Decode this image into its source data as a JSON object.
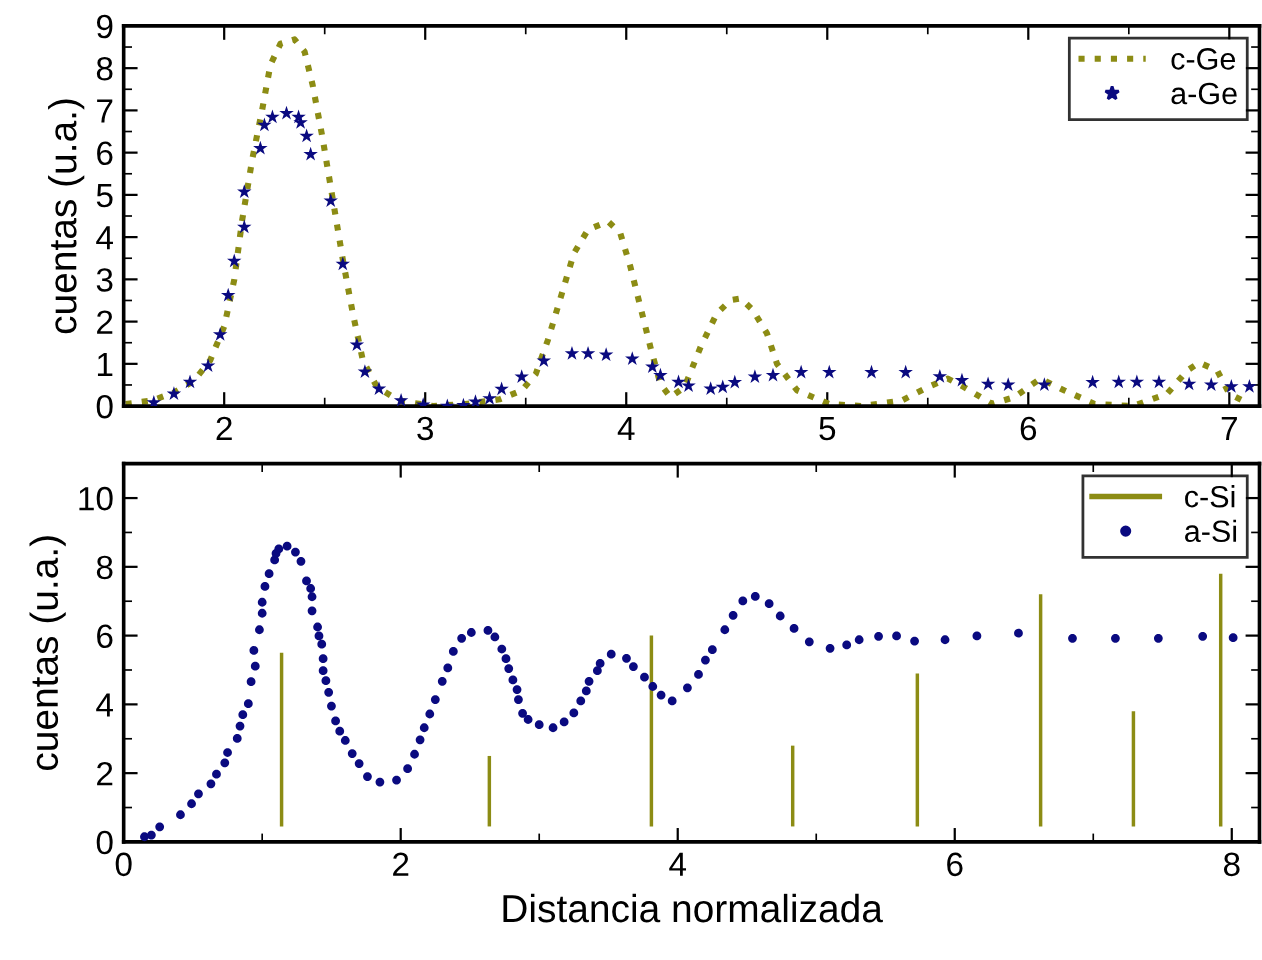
{
  "chart_data": [
    {
      "type": "line",
      "ylabel": "cuentas (u.a.)",
      "xlim": [
        1.5,
        7.15
      ],
      "ylim": [
        0,
        9
      ],
      "xticks": [
        2,
        3,
        4,
        5,
        6,
        7
      ],
      "yticks": [
        0,
        1,
        2,
        3,
        4,
        5,
        6,
        7,
        8,
        9
      ],
      "legend": "top right",
      "grid": false,
      "series": [
        {
          "name": "c-Ge",
          "line_style": "dotted",
          "color": "#8c8c14",
          "x": [
            1.51,
            1.64,
            1.75,
            1.85,
            1.93,
            2.0,
            2.05,
            2.09,
            2.14,
            2.19,
            2.23,
            2.28,
            2.35,
            2.4,
            2.44,
            2.49,
            2.54,
            2.59,
            2.64,
            2.69,
            2.76,
            2.87,
            3.04,
            3.2,
            3.37,
            3.48,
            3.55,
            3.61,
            3.68,
            3.74,
            3.81,
            3.91,
            3.97,
            4.02,
            4.07,
            4.12,
            4.17,
            4.22,
            4.29,
            4.37,
            4.45,
            4.52,
            4.57,
            4.63,
            4.7,
            4.75,
            4.85,
            5.01,
            5.17,
            5.37,
            5.5,
            5.6,
            5.68,
            5.82,
            5.93,
            6.06,
            6.18,
            6.33,
            6.52,
            6.69,
            6.79,
            6.85,
            6.94,
            7.0,
            7.1
          ],
          "values": [
            0.05,
            0.13,
            0.32,
            0.6,
            1.08,
            1.88,
            2.99,
            4.42,
            5.85,
            7.04,
            8.08,
            8.58,
            8.68,
            8.39,
            7.6,
            6.33,
            4.9,
            3.47,
            2.19,
            1.08,
            0.45,
            0.13,
            0.0,
            0.05,
            0.16,
            0.37,
            0.76,
            1.56,
            2.67,
            3.62,
            4.18,
            4.37,
            4.1,
            3.31,
            2.36,
            1.4,
            0.52,
            0.21,
            0.45,
            1.4,
            2.19,
            2.51,
            2.55,
            2.27,
            1.72,
            1.0,
            0.37,
            0.05,
            0.0,
            0.13,
            0.45,
            0.65,
            0.45,
            0.05,
            0.21,
            0.65,
            0.37,
            0.05,
            0.0,
            0.29,
            0.84,
            1.03,
            0.84,
            0.29,
            0.05
          ]
        },
        {
          "name": "a-Ge",
          "type": "scatter",
          "marker": "star",
          "color": "#0a0a80",
          "x": [
            1.65,
            1.75,
            1.83,
            1.92,
            1.98,
            2.02,
            2.05,
            2.1,
            2.1,
            2.18,
            2.2,
            2.24,
            2.31,
            2.37,
            2.38,
            2.41,
            2.43,
            2.53,
            2.59,
            2.66,
            2.7,
            2.77,
            2.88,
            2.99,
            3.11,
            3.19,
            3.25,
            3.32,
            3.38,
            3.48,
            3.59,
            3.73,
            3.81,
            3.9,
            4.03,
            4.13,
            4.17,
            4.26,
            4.31,
            4.42,
            4.48,
            4.54,
            4.64,
            4.73,
            4.87,
            5.01,
            5.22,
            5.39,
            5.56,
            5.67,
            5.8,
            5.9,
            6.08,
            6.32,
            6.45,
            6.54,
            6.65,
            6.8,
            6.91,
            7.01,
            7.1
          ],
          "values": [
            0.08,
            0.29,
            0.57,
            0.95,
            1.69,
            2.62,
            3.43,
            4.24,
            5.07,
            6.1,
            6.65,
            6.84,
            6.93,
            6.84,
            6.71,
            6.39,
            5.96,
            4.86,
            3.36,
            1.45,
            0.81,
            0.41,
            0.13,
            0.03,
            0.0,
            0.02,
            0.1,
            0.18,
            0.4,
            0.69,
            1.07,
            1.24,
            1.24,
            1.21,
            1.12,
            0.93,
            0.73,
            0.57,
            0.48,
            0.41,
            0.45,
            0.56,
            0.69,
            0.73,
            0.8,
            0.8,
            0.8,
            0.8,
            0.7,
            0.61,
            0.52,
            0.5,
            0.5,
            0.56,
            0.57,
            0.57,
            0.57,
            0.52,
            0.5,
            0.46,
            0.46
          ]
        }
      ]
    },
    {
      "type": "scatter",
      "xlabel": "Distancia normalizada",
      "ylabel": "cuentas (u.a.)",
      "xlim": [
        0,
        8.2
      ],
      "ylim": [
        0,
        11
      ],
      "xticks": [
        0,
        2,
        4,
        6,
        8
      ],
      "yticks": [
        0,
        2,
        4,
        6,
        8,
        10
      ],
      "legend": "top right",
      "grid": false,
      "series": [
        {
          "name": "c-Si",
          "type": "bar",
          "color": "#8c8c14",
          "x": [
            1.14,
            2.64,
            3.81,
            4.83,
            5.73,
            6.62,
            7.29,
            7.92
          ],
          "base": [
            0.45,
            0.45,
            0.45,
            0.45,
            0.45,
            0.45,
            0.45,
            0.45
          ],
          "values": [
            5.05,
            2.05,
            5.55,
            2.35,
            4.45,
            6.75,
            3.35,
            7.35
          ]
        },
        {
          "name": "a-Si",
          "marker": "circle",
          "color": "#0a0a80",
          "x": [
            0.15,
            0.2,
            0.26,
            0.41,
            0.49,
            0.54,
            0.63,
            0.67,
            0.73,
            0.75,
            0.82,
            0.84,
            0.86,
            0.9,
            0.92,
            0.95,
            0.94,
            0.98,
            1.0,
            1.0,
            1.02,
            1.05,
            1.09,
            1.1,
            1.12,
            1.18,
            1.24,
            1.28,
            1.32,
            1.35,
            1.36,
            1.36,
            1.4,
            1.41,
            1.43,
            1.44,
            1.44,
            1.46,
            1.48,
            1.5,
            1.53,
            1.56,
            1.6,
            1.65,
            1.7,
            1.76,
            1.85,
            1.97,
            2.05,
            2.1,
            2.14,
            2.17,
            2.21,
            2.25,
            2.3,
            2.34,
            2.38,
            2.44,
            2.51,
            2.63,
            2.68,
            2.73,
            2.76,
            2.78,
            2.81,
            2.84,
            2.85,
            2.88,
            2.92,
            3.0,
            3.1,
            3.18,
            3.25,
            3.3,
            3.34,
            3.36,
            3.42,
            3.44,
            3.52,
            3.63,
            3.68,
            3.76,
            3.82,
            3.88,
            3.96,
            4.07,
            4.15,
            4.2,
            4.25,
            4.34,
            4.4,
            4.47,
            4.56,
            4.66,
            4.74,
            4.84,
            4.95,
            5.1,
            5.22,
            5.31,
            5.45,
            5.58,
            5.71,
            5.93,
            6.16,
            6.46,
            6.85,
            7.16,
            7.47,
            7.79,
            8.01
          ],
          "values": [
            0.15,
            0.2,
            0.44,
            0.79,
            1.11,
            1.4,
            1.69,
            1.97,
            2.3,
            2.6,
            3.01,
            3.37,
            3.7,
            4.02,
            4.66,
            5.11,
            5.57,
            6.17,
            6.65,
            6.97,
            7.43,
            7.8,
            8.2,
            8.39,
            8.52,
            8.6,
            8.43,
            8.16,
            7.59,
            7.37,
            7.13,
            6.72,
            6.25,
            5.99,
            5.75,
            5.33,
            4.98,
            4.69,
            4.35,
            3.95,
            3.52,
            3.22,
            2.95,
            2.57,
            2.28,
            1.9,
            1.74,
            1.8,
            2.13,
            2.55,
            2.97,
            3.32,
            3.72,
            4.14,
            4.67,
            5.06,
            5.54,
            5.92,
            6.09,
            6.15,
            5.96,
            5.61,
            5.33,
            5.04,
            4.71,
            4.43,
            4.14,
            3.74,
            3.56,
            3.41,
            3.32,
            3.49,
            3.75,
            4.1,
            4.39,
            4.67,
            4.98,
            5.19,
            5.46,
            5.34,
            5.1,
            4.79,
            4.52,
            4.27,
            4.1,
            4.48,
            4.87,
            5.29,
            5.59,
            6.17,
            6.59,
            7.01,
            7.14,
            6.93,
            6.57,
            6.21,
            5.82,
            5.63,
            5.73,
            5.88,
            5.98,
            5.99,
            5.84,
            5.88,
            5.99,
            6.07,
            5.92,
            5.92,
            5.92,
            5.98,
            5.94
          ]
        }
      ]
    }
  ]
}
